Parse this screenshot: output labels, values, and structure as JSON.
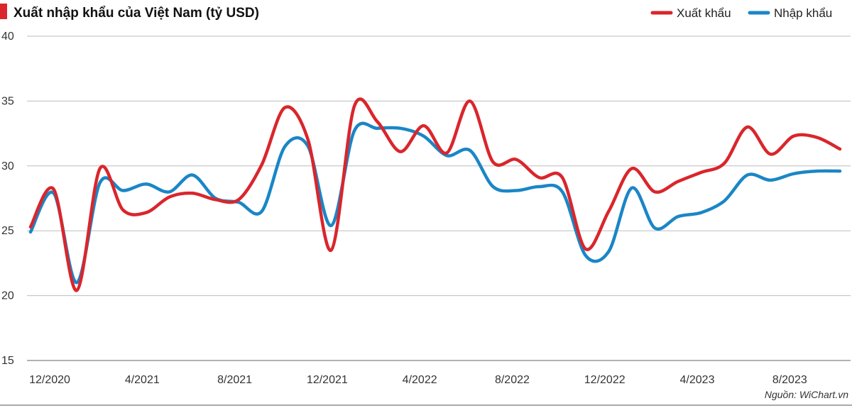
{
  "chart_data": {
    "type": "line",
    "title": "Xuất nhập khẩu của Việt Nam (tỷ USD)",
    "source": "Nguồn: WiChart.vn",
    "xlabel": "",
    "ylabel": "",
    "ylim": [
      15,
      40
    ],
    "yticks": [
      15,
      20,
      25,
      30,
      35,
      40
    ],
    "grid": true,
    "legend_position": "top-right",
    "x": [
      "12/2020",
      "1/2021",
      "2/2021",
      "3/2021",
      "4/2021",
      "5/2021",
      "6/2021",
      "7/2021",
      "8/2021",
      "9/2021",
      "10/2021",
      "11/2021",
      "12/2021",
      "1/2022",
      "2/2022",
      "3/2022",
      "4/2022",
      "5/2022",
      "6/2022",
      "7/2022",
      "8/2022",
      "9/2022",
      "10/2022",
      "11/2022",
      "12/2022",
      "1/2023",
      "2/2023",
      "3/2023",
      "4/2023",
      "5/2023",
      "6/2023",
      "7/2023",
      "8/2023",
      "9/2023",
      "10/2023",
      "11/2023"
    ],
    "xtick_labels": [
      "12/2020",
      "4/2021",
      "8/2021",
      "12/2021",
      "4/2022",
      "8/2022",
      "12/2022",
      "4/2023",
      "8/2023"
    ],
    "series": [
      {
        "name": "Xuất khẩu",
        "color": "#d9262c",
        "values": [
          25.3,
          28.2,
          20.4,
          29.8,
          26.6,
          26.4,
          27.6,
          27.9,
          27.4,
          27.4,
          30.1,
          34.5,
          32.0,
          23.5,
          34.6,
          33.4,
          31.1,
          33.1,
          31.0,
          35.0,
          30.3,
          30.5,
          29.1,
          29.1,
          23.6,
          26.5,
          29.8,
          28.0,
          28.8,
          29.5,
          30.2,
          33.0,
          30.9,
          32.3,
          32.2,
          31.3
        ]
      },
      {
        "name": "Nhập khẩu",
        "color": "#1a86c6",
        "values": [
          24.9,
          27.9,
          21.0,
          28.7,
          28.1,
          28.6,
          28.0,
          29.3,
          27.5,
          27.2,
          26.5,
          31.5,
          31.5,
          25.4,
          32.7,
          32.9,
          32.9,
          32.3,
          30.8,
          31.2,
          28.4,
          28.1,
          28.4,
          28.0,
          23.1,
          23.4,
          28.3,
          25.2,
          26.1,
          26.4,
          27.3,
          29.3,
          28.9,
          29.4,
          29.6,
          29.6
        ]
      }
    ]
  }
}
